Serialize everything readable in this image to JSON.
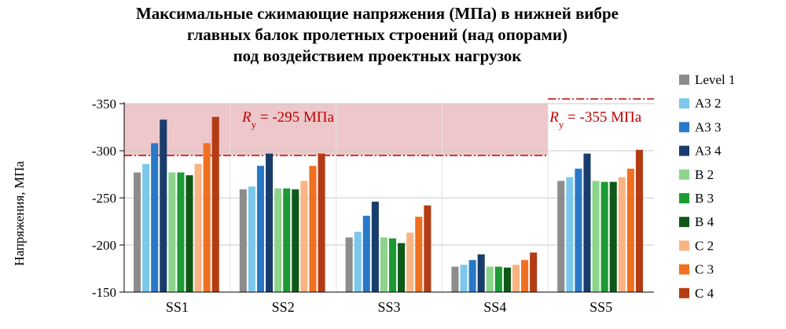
{
  "title_lines": [
    "Максимальные сжимающие напряжения (МПа) в нижней вибре",
    "главных балок пролетных строений (над опорами)",
    "под воздействием проектных нагрузок"
  ],
  "chart_data": {
    "type": "bar",
    "ylabel": "Напряжения, МПа",
    "ylim": [
      -150,
      -360
    ],
    "yticks": [
      -150,
      -200,
      -250,
      -300,
      -350
    ],
    "ytick_labels": [
      "-150",
      "-200",
      "-250",
      "-300",
      "-350"
    ],
    "grid": true,
    "legend_position": "right",
    "categories": [
      "SS1",
      "SS2",
      "SS3",
      "SS4",
      "SS5"
    ],
    "series": [
      {
        "name": "Level 1",
        "color": "#8c8c8c",
        "values": [
          -277,
          -259,
          -208,
          -177,
          -268
        ]
      },
      {
        "name": "A3 2",
        "color": "#7cc8ec",
        "values": [
          -286,
          -262,
          -214,
          -179,
          -272
        ]
      },
      {
        "name": "A3 3",
        "color": "#2878c8",
        "values": [
          -308,
          -284,
          -231,
          -184,
          -281
        ]
      },
      {
        "name": "A3 4",
        "color": "#183c6c",
        "values": [
          -333,
          -297,
          -246,
          -190,
          -297
        ]
      },
      {
        "name": "B 2",
        "color": "#8cd48c",
        "values": [
          -277,
          -260,
          -208,
          -177,
          -268
        ]
      },
      {
        "name": "B 3",
        "color": "#1c9a34",
        "values": [
          -277,
          -260,
          -207,
          -177,
          -267
        ]
      },
      {
        "name": "B 4",
        "color": "#0e5818",
        "values": [
          -274,
          -259,
          -202,
          -176,
          -267
        ]
      },
      {
        "name": "C 2",
        "color": "#f8b482",
        "values": [
          -286,
          -268,
          -213,
          -179,
          -272
        ]
      },
      {
        "name": "C 3",
        "color": "#f07020",
        "values": [
          -308,
          -284,
          -230,
          -184,
          -281
        ]
      },
      {
        "name": "C 4",
        "color": "#b43c14",
        "values": [
          -336,
          -297,
          -242,
          -192,
          -301
        ]
      }
    ],
    "reference_lines": [
      {
        "value": -295,
        "label_sub": "y",
        "label_prefix": "R",
        "label_text": " = -295 МПа",
        "categories": [
          "SS1",
          "SS2",
          "SS3",
          "SS4"
        ],
        "color": "#c00000"
      },
      {
        "value": -355,
        "label_sub": "y",
        "label_prefix": "R",
        "label_text": " = -355 МПа",
        "categories": [
          "SS5"
        ],
        "color": "#c00000"
      }
    ],
    "shaded_region_color": "#e8b4b8"
  }
}
